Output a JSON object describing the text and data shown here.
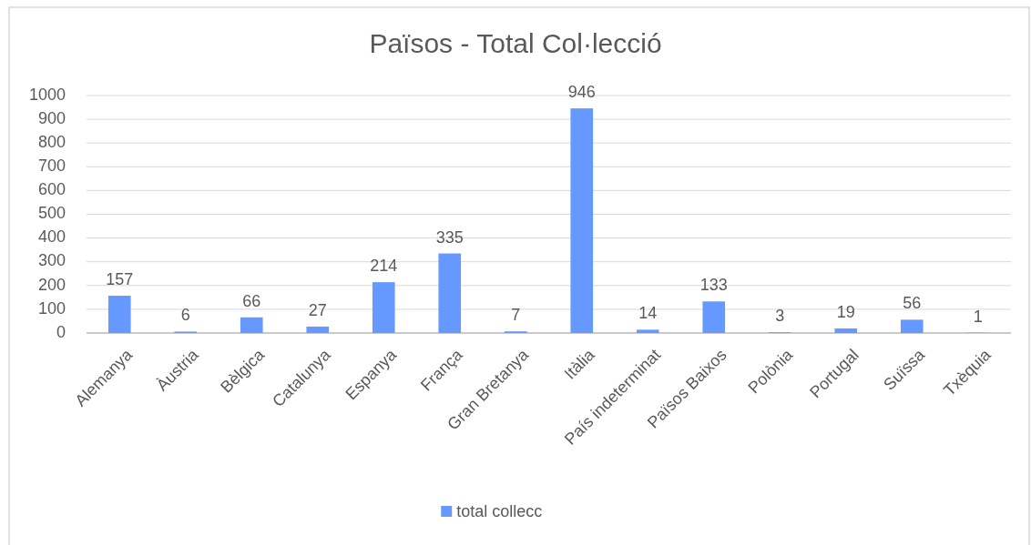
{
  "chart_data": {
    "type": "bar",
    "title": "Països - Total Col·lecció",
    "categories": [
      "Alemanya",
      "Àustria",
      "Bèlgica",
      "Catalunya",
      "Espanya",
      "França",
      "Gran Bretanya",
      "Itàlia",
      "País indeterminat",
      "Països Baixos",
      "Polònia",
      "Portugal",
      "Suïssa",
      "Txèquia"
    ],
    "series": [
      {
        "name": "total collecc",
        "color": "#6699ff",
        "values": [
          157,
          6,
          66,
          27,
          214,
          335,
          7,
          946,
          14,
          133,
          3,
          19,
          56,
          1
        ]
      }
    ],
    "ylim": [
      0,
      1000
    ],
    "yticks": [
      0,
      100,
      200,
      300,
      400,
      500,
      600,
      700,
      800,
      900,
      1000
    ],
    "grid": "y",
    "legend": "bottom",
    "data_labels": true
  }
}
